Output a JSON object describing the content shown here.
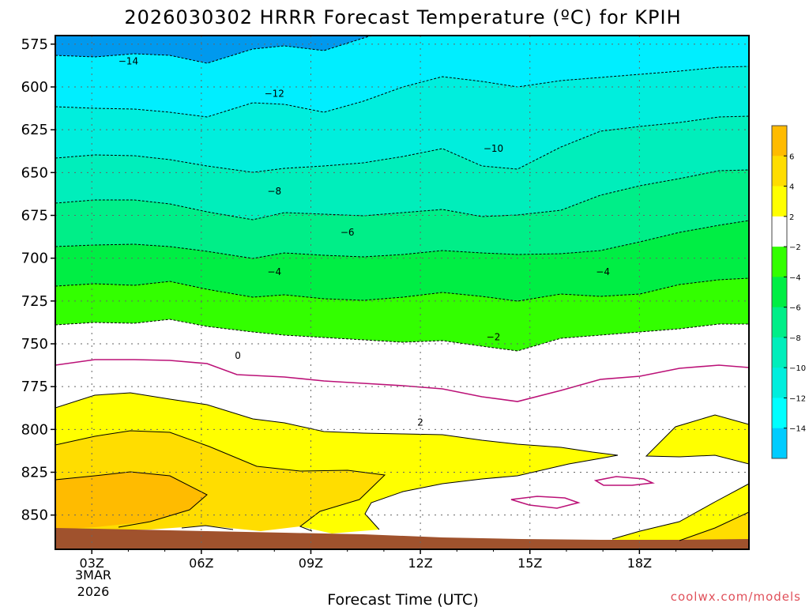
{
  "chart_data": {
    "type": "contour",
    "title": "2026030302 HRRR Forecast Temperature (ºC) for KPIH",
    "xlabel": "Forecast Time (UTC)",
    "ylabel": "",
    "y_unit": "hPa",
    "y_axis": "pressure, inverted, increasing downward",
    "ylim": [
      870,
      570
    ],
    "y_ticks": [
      "575",
      "600",
      "625",
      "650",
      "675",
      "700",
      "725",
      "750",
      "775",
      "800",
      "825",
      "850"
    ],
    "y_tick_values": [
      575,
      600,
      625,
      650,
      675,
      700,
      725,
      750,
      775,
      800,
      825,
      850
    ],
    "xlim": [
      2,
      21
    ],
    "x_ticks": [
      "03Z",
      "06Z",
      "09Z",
      "12Z",
      "15Z",
      "18Z"
    ],
    "x_tick_hours": [
      3,
      6,
      9,
      12,
      15,
      18
    ],
    "start_date_line1": "3MAR",
    "start_date_line2": "2026",
    "credit": "coolwx.com/models",
    "grid": true,
    "colorbar_labels": [
      "6",
      "4",
      "2",
      "−2",
      "−4",
      "−6",
      "−8",
      "−10",
      "−12",
      "−14"
    ],
    "colorbar_colors": [
      "#ffbb00",
      "#ffdd00",
      "#ffff00",
      "#ffffff",
      "#33ff00",
      "#00ee44",
      "#00ee88",
      "#00eebb",
      "#00eedd",
      "#00ffff",
      "#00ccff"
    ],
    "ground_color": "#a0522d",
    "contour_labels": [
      {
        "text": "−14",
        "hour": 4,
        "hpa": 585
      },
      {
        "text": "−12",
        "hour": 8,
        "hpa": 604
      },
      {
        "text": "−10",
        "hour": 14,
        "hpa": 636
      },
      {
        "text": "−8",
        "hour": 8,
        "hpa": 661
      },
      {
        "text": "−6",
        "hour": 10,
        "hpa": 685
      },
      {
        "text": "−4",
        "hour": 8,
        "hpa": 708
      },
      {
        "text": "−4",
        "hour": 17,
        "hpa": 708
      },
      {
        "text": "−2",
        "hour": 14,
        "hpa": 746
      },
      {
        "text": "0",
        "hour": 7,
        "hpa": 757
      },
      {
        "text": "2",
        "hour": 12,
        "hpa": 796
      }
    ]
  }
}
